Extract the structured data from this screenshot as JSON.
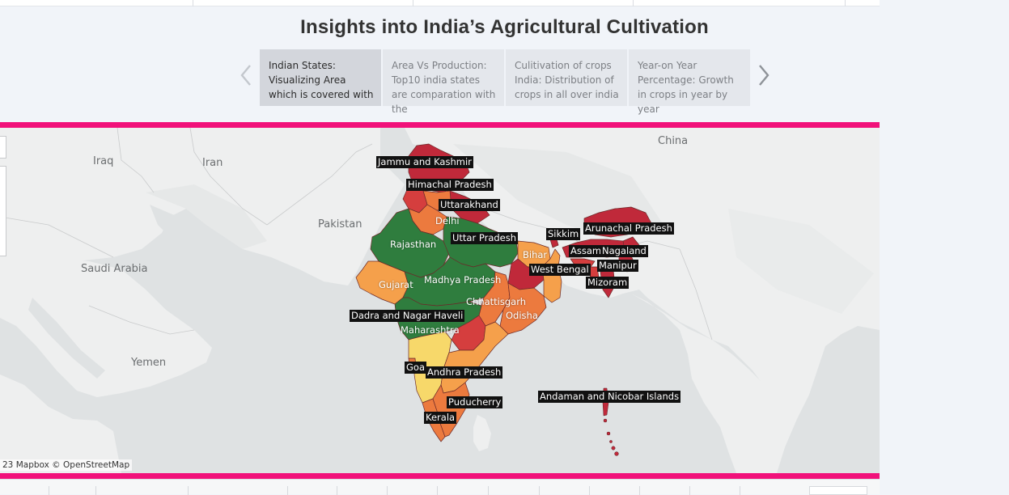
{
  "dashboard": {
    "title": "Insights into India’s Agricultural Cultivation"
  },
  "story_points": [
    {
      "text": "Indian States: Visualizing Area which is covered with",
      "active": true
    },
    {
      "text": "Area Vs Production: Top10 india states are comparation  with the",
      "active": false
    },
    {
      "text": "Culitivation of crops India: Distribution of crops in all over india",
      "active": false
    },
    {
      "text": "Year-on Year Percentage: Growth in crops in year by year",
      "active": false
    }
  ],
  "map": {
    "attribution": "23 Mapbox © OpenStreetMap",
    "countries": [
      "Iraq",
      "Iran",
      "Pakistan",
      "Saudi Arabia",
      "Yemen",
      "China"
    ],
    "colors": {
      "dark_green": "#2f7d3e",
      "green": "#5e9e55",
      "light_orange": "#f5a04b",
      "orange": "#ec7a3e",
      "yellow": "#f7d86a",
      "red": "#d53e3e",
      "dark_red": "#c0293a",
      "accent_pink": "#f1117a",
      "ocean": "#dfe2e3",
      "land": "#eeefef"
    },
    "states": [
      {
        "name": "Jammu and Kashmir",
        "boxed": true
      },
      {
        "name": "Himachal Pradesh",
        "boxed": true
      },
      {
        "name": "Uttarakhand",
        "boxed": true
      },
      {
        "name": "Delhi",
        "boxed": false
      },
      {
        "name": "Uttar Pradesh",
        "boxed": true
      },
      {
        "name": "Rajasthan",
        "boxed": false
      },
      {
        "name": "Sikkim",
        "boxed": true
      },
      {
        "name": "Arunachal Pradesh",
        "boxed": true
      },
      {
        "name": "Assam",
        "boxed": true
      },
      {
        "name": "Nagaland",
        "boxed": true
      },
      {
        "name": "Bihar",
        "boxed": false
      },
      {
        "name": "West Bengal",
        "boxed": true
      },
      {
        "name": "Manipur",
        "boxed": true
      },
      {
        "name": "Gujarat",
        "boxed": false
      },
      {
        "name": "Madhya Pradesh",
        "boxed": false
      },
      {
        "name": "Mizoram",
        "boxed": true
      },
      {
        "name": "Chhattisgarh",
        "boxed": false
      },
      {
        "name": "Dadra and Nagar Haveli",
        "boxed": true
      },
      {
        "name": "Odisha",
        "boxed": false
      },
      {
        "name": "Maharashtra",
        "boxed": false
      },
      {
        "name": "Goa",
        "boxed": true
      },
      {
        "name": "Andhra Pradesh",
        "boxed": true
      },
      {
        "name": "Andaman and Nicobar Islands",
        "boxed": true
      },
      {
        "name": "Puducherry",
        "boxed": true
      },
      {
        "name": "Kerala",
        "boxed": true
      }
    ]
  }
}
